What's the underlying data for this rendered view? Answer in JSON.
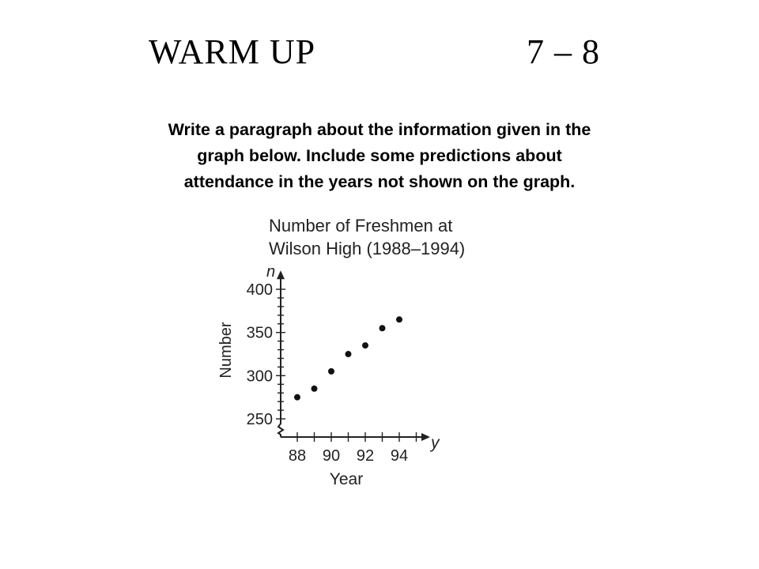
{
  "slide": {
    "title": "WARM UP",
    "lesson": "7 – 8",
    "prompt_lines": [
      "Write a paragraph about the information given in the",
      "graph below. Include some predictions about",
      "attendance in the years not shown on the graph."
    ]
  },
  "chart_data": {
    "type": "scatter",
    "title_lines": [
      "Number of Freshmen at",
      "Wilson High (1988–1994)"
    ],
    "xlabel": "Year",
    "ylabel": "Number",
    "x_axis_var": "y",
    "y_axis_var": "n",
    "x_ticks": [
      88,
      89,
      90,
      91,
      92,
      93,
      94,
      95
    ],
    "x_tick_labels": [
      "88",
      "90",
      "92",
      "94"
    ],
    "y_tick_labels": [
      "250",
      "300",
      "350",
      "400"
    ],
    "xlim": [
      87.5,
      96
    ],
    "ylim": [
      230,
      420
    ],
    "y_axis_break": true,
    "grid": false,
    "points": [
      {
        "x": 88,
        "y": 275
      },
      {
        "x": 89,
        "y": 285
      },
      {
        "x": 90,
        "y": 305
      },
      {
        "x": 91,
        "y": 325
      },
      {
        "x": 92,
        "y": 335
      },
      {
        "x": 93,
        "y": 355
      },
      {
        "x": 94,
        "y": 365
      }
    ]
  }
}
